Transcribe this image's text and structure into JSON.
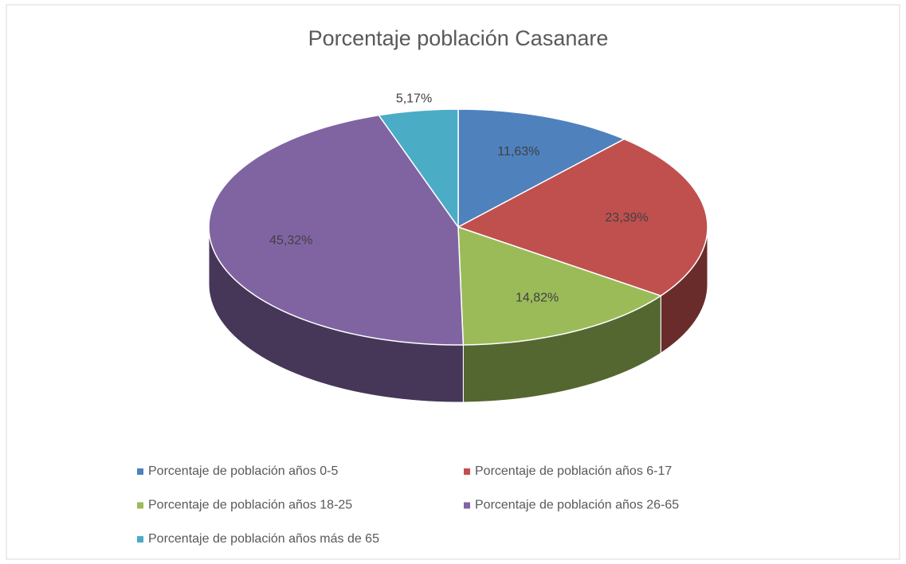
{
  "chart_data": {
    "type": "pie3d",
    "title": "Porcentaje población Casanare",
    "categories": [
      "Porcentaje de población años 0-5",
      "Porcentaje de población años 6-17",
      "Porcentaje de población años 18-25",
      "Porcentaje de población años 26-65",
      "Porcentaje de población años más de 65"
    ],
    "values": [
      11.63,
      23.39,
      14.82,
      45.32,
      5.17
    ],
    "value_labels": [
      "11,63%",
      "23,39%",
      "14,82%",
      "45,32%",
      "5,17%"
    ],
    "colors": [
      "#4f81bd",
      "#c0504d",
      "#9bbb59",
      "#8064a2",
      "#4bacc6"
    ],
    "legend": "bottom"
  }
}
